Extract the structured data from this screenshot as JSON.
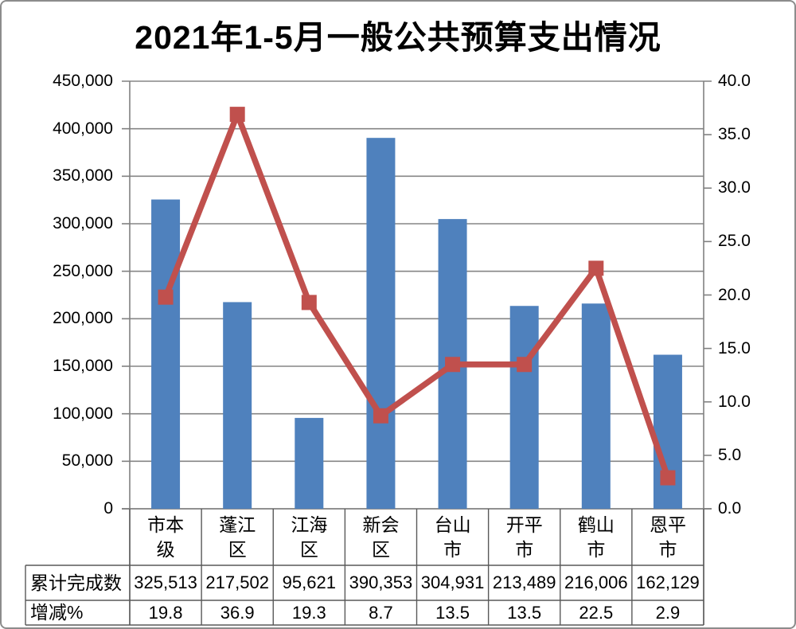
{
  "chart_data": {
    "type": "bar",
    "combo": "bar+line",
    "title": "2021年1-5月一般公共预算支出情况",
    "categories": [
      "市本级",
      "蓬江区",
      "江海区",
      "新会区",
      "台山市",
      "开平市",
      "鹤山市",
      "恩平市"
    ],
    "series": [
      {
        "name": "累计完成数",
        "chart": "bar",
        "axis": "left",
        "values": [
          325513,
          217502,
          95621,
          390353,
          304931,
          213489,
          216006,
          162129
        ]
      },
      {
        "name": "增减%",
        "chart": "line",
        "axis": "right",
        "values": [
          19.8,
          36.9,
          19.3,
          8.7,
          13.5,
          13.5,
          22.5,
          2.9
        ]
      }
    ],
    "left_axis": {
      "min": 0,
      "max": 450000,
      "step": 50000,
      "tick_labels": [
        "0",
        "50,000",
        "100,000",
        "150,000",
        "200,000",
        "250,000",
        "300,000",
        "350,000",
        "400,000",
        "450,000"
      ]
    },
    "right_axis": {
      "min": 0,
      "max": 40,
      "step": 5,
      "tick_labels": [
        "0.0",
        "5.0",
        "10.0",
        "15.0",
        "20.0",
        "25.0",
        "30.0",
        "35.0",
        "40.0"
      ]
    },
    "gridlines": true,
    "legend": false,
    "data_table": {
      "row_labels": [
        "累计完成数",
        "增减%"
      ],
      "rows": [
        [
          "325,513",
          "217,502",
          "95,621",
          "390,353",
          "304,931",
          "213,489",
          "216,006",
          "162,129"
        ],
        [
          "19.8",
          "36.9",
          "19.3",
          "8.7",
          "13.5",
          "13.5",
          "22.5",
          "2.9"
        ]
      ]
    },
    "colors": {
      "bar": "#4F81BD",
      "line": "#C0504D",
      "marker": "#C0504D",
      "gridline": "#858585",
      "axis": "#808080",
      "table_border": "#595959",
      "text": "#000000",
      "background": "#FFFFFF"
    }
  }
}
